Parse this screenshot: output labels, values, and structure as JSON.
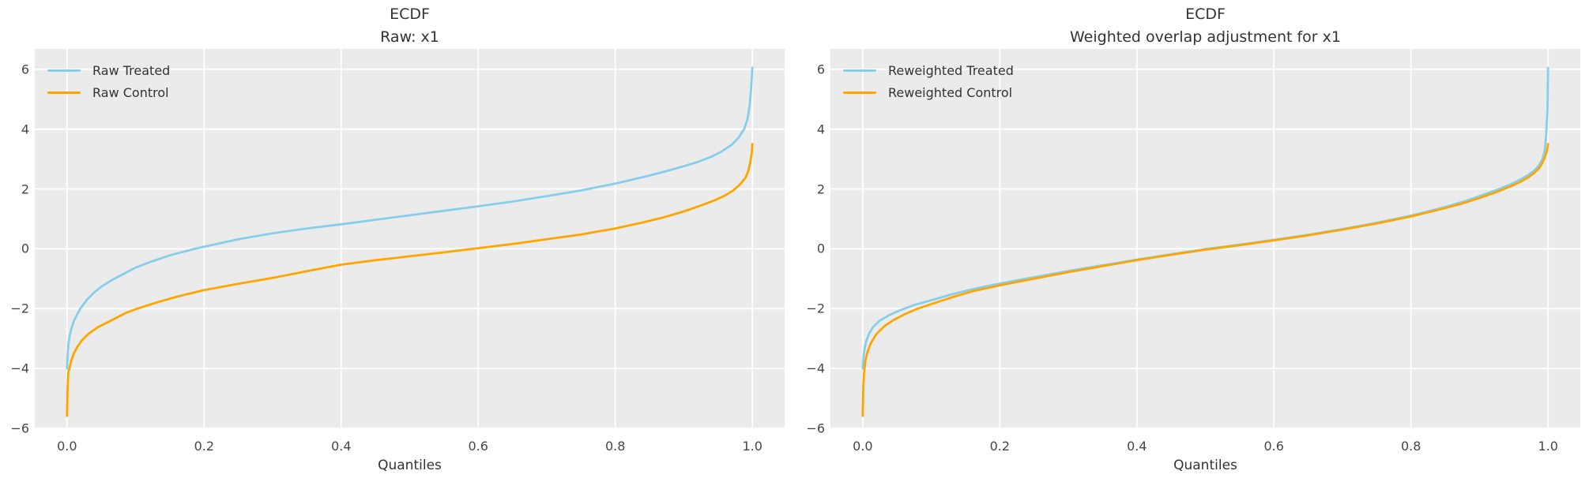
{
  "figure": {
    "background": "#ffffff",
    "axes_background": "#ebebeb",
    "grid_color": "#ffffff",
    "treated_color": "#87CEEB",
    "control_color": "#FFA500"
  },
  "chart_data": [
    {
      "type": "line",
      "title_lines": [
        "ECDF",
        "Raw: x1"
      ],
      "xlabel": "Quantiles",
      "grid": true,
      "legend_position": "upper left",
      "xlim": [
        -0.047,
        1.047
      ],
      "ylim": [
        -6.0,
        6.68
      ],
      "xticks": [
        0.0,
        0.2,
        0.4,
        0.6,
        0.8,
        1.0
      ],
      "xtick_labels": [
        "0.0",
        "0.2",
        "0.4",
        "0.6",
        "0.8",
        "1.0"
      ],
      "yticks": [
        6,
        4,
        2,
        0,
        -2,
        -4,
        -6
      ],
      "ytick_labels": [
        "6",
        "4",
        "2",
        "0",
        "−2",
        "−4",
        "−6"
      ],
      "series": [
        {
          "name": "Raw Treated",
          "color": "#87CEEB",
          "points": [
            [
              0.0,
              -4.0
            ],
            [
              0.001,
              -3.55
            ],
            [
              0.002,
              -3.2
            ],
            [
              0.004,
              -2.9
            ],
            [
              0.006,
              -2.7
            ],
            [
              0.01,
              -2.42
            ],
            [
              0.015,
              -2.18
            ],
            [
              0.02,
              -1.98
            ],
            [
              0.03,
              -1.68
            ],
            [
              0.04,
              -1.45
            ],
            [
              0.05,
              -1.27
            ],
            [
              0.065,
              -1.05
            ],
            [
              0.08,
              -0.87
            ],
            [
              0.1,
              -0.63
            ],
            [
              0.12,
              -0.45
            ],
            [
              0.15,
              -0.22
            ],
            [
              0.18,
              -0.04
            ],
            [
              0.2,
              0.07
            ],
            [
              0.25,
              0.32
            ],
            [
              0.3,
              0.52
            ],
            [
              0.35,
              0.68
            ],
            [
              0.4,
              0.82
            ],
            [
              0.45,
              0.97
            ],
            [
              0.5,
              1.12
            ],
            [
              0.55,
              1.27
            ],
            [
              0.6,
              1.42
            ],
            [
              0.65,
              1.58
            ],
            [
              0.7,
              1.76
            ],
            [
              0.75,
              1.95
            ],
            [
              0.8,
              2.18
            ],
            [
              0.85,
              2.45
            ],
            [
              0.88,
              2.63
            ],
            [
              0.9,
              2.76
            ],
            [
              0.92,
              2.9
            ],
            [
              0.94,
              3.08
            ],
            [
              0.955,
              3.25
            ],
            [
              0.97,
              3.48
            ],
            [
              0.98,
              3.72
            ],
            [
              0.988,
              4.0
            ],
            [
              0.993,
              4.35
            ],
            [
              0.996,
              4.8
            ],
            [
              0.998,
              5.3
            ],
            [
              1.0,
              6.05
            ]
          ]
        },
        {
          "name": "Raw Control",
          "color": "#FFA500",
          "points": [
            [
              0.0,
              -5.58
            ],
            [
              0.001,
              -4.6
            ],
            [
              0.002,
              -4.1
            ],
            [
              0.003,
              -4.05
            ],
            [
              0.006,
              -3.75
            ],
            [
              0.01,
              -3.5
            ],
            [
              0.015,
              -3.28
            ],
            [
              0.022,
              -3.05
            ],
            [
              0.032,
              -2.83
            ],
            [
              0.045,
              -2.62
            ],
            [
              0.06,
              -2.45
            ],
            [
              0.07,
              -2.33
            ],
            [
              0.085,
              -2.15
            ],
            [
              0.1,
              -2.02
            ],
            [
              0.13,
              -1.8
            ],
            [
              0.16,
              -1.6
            ],
            [
              0.2,
              -1.38
            ],
            [
              0.25,
              -1.17
            ],
            [
              0.3,
              -0.97
            ],
            [
              0.35,
              -0.75
            ],
            [
              0.4,
              -0.53
            ],
            [
              0.45,
              -0.38
            ],
            [
              0.5,
              -0.25
            ],
            [
              0.55,
              -0.12
            ],
            [
              0.6,
              0.02
            ],
            [
              0.65,
              0.16
            ],
            [
              0.7,
              0.32
            ],
            [
              0.75,
              0.48
            ],
            [
              0.8,
              0.68
            ],
            [
              0.84,
              0.88
            ],
            [
              0.87,
              1.05
            ],
            [
              0.9,
              1.25
            ],
            [
              0.925,
              1.45
            ],
            [
              0.945,
              1.62
            ],
            [
              0.96,
              1.78
            ],
            [
              0.972,
              1.95
            ],
            [
              0.982,
              2.15
            ],
            [
              0.99,
              2.38
            ],
            [
              0.994,
              2.6
            ],
            [
              0.997,
              2.9
            ],
            [
              0.999,
              3.2
            ],
            [
              1.0,
              3.5
            ]
          ]
        }
      ]
    },
    {
      "type": "line",
      "title_lines": [
        "ECDF",
        "Weighted overlap adjustment for x1"
      ],
      "xlabel": "Quantiles",
      "grid": true,
      "legend_position": "upper left",
      "xlim": [
        -0.047,
        1.047
      ],
      "ylim": [
        -6.0,
        6.68
      ],
      "xticks": [
        0.0,
        0.2,
        0.4,
        0.6,
        0.8,
        1.0
      ],
      "xtick_labels": [
        "0.0",
        "0.2",
        "0.4",
        "0.6",
        "0.8",
        "1.0"
      ],
      "yticks": [
        6,
        4,
        2,
        0,
        -2,
        -4,
        -6
      ],
      "ytick_labels": [
        "6",
        "4",
        "2",
        "0",
        "−2",
        "−4",
        "−6"
      ],
      "series": [
        {
          "name": "Reweighted Treated",
          "color": "#87CEEB",
          "points": [
            [
              0.0,
              -4.0
            ],
            [
              0.002,
              -3.45
            ],
            [
              0.005,
              -3.1
            ],
            [
              0.009,
              -2.85
            ],
            [
              0.015,
              -2.62
            ],
            [
              0.025,
              -2.4
            ],
            [
              0.04,
              -2.2
            ],
            [
              0.055,
              -2.05
            ],
            [
              0.075,
              -1.88
            ],
            [
              0.1,
              -1.72
            ],
            [
              0.13,
              -1.52
            ],
            [
              0.16,
              -1.35
            ],
            [
              0.2,
              -1.16
            ],
            [
              0.25,
              -0.95
            ],
            [
              0.3,
              -0.74
            ],
            [
              0.35,
              -0.55
            ],
            [
              0.4,
              -0.36
            ],
            [
              0.45,
              -0.18
            ],
            [
              0.5,
              -0.01
            ],
            [
              0.55,
              0.14
            ],
            [
              0.6,
              0.3
            ],
            [
              0.65,
              0.47
            ],
            [
              0.7,
              0.66
            ],
            [
              0.75,
              0.87
            ],
            [
              0.8,
              1.11
            ],
            [
              0.85,
              1.4
            ],
            [
              0.88,
              1.6
            ],
            [
              0.9,
              1.76
            ],
            [
              0.925,
              1.97
            ],
            [
              0.945,
              2.15
            ],
            [
              0.96,
              2.32
            ],
            [
              0.972,
              2.48
            ],
            [
              0.98,
              2.62
            ],
            [
              0.987,
              2.8
            ],
            [
              0.992,
              3.0
            ],
            [
              0.995,
              3.28
            ],
            [
              0.997,
              3.75
            ],
            [
              0.999,
              4.6
            ],
            [
              1.0,
              6.05
            ]
          ]
        },
        {
          "name": "Reweighted Control",
          "color": "#FFA500",
          "points": [
            [
              0.0,
              -5.58
            ],
            [
              0.001,
              -4.6
            ],
            [
              0.002,
              -4.15
            ],
            [
              0.004,
              -3.75
            ],
            [
              0.007,
              -3.45
            ],
            [
              0.012,
              -3.15
            ],
            [
              0.02,
              -2.85
            ],
            [
              0.032,
              -2.58
            ],
            [
              0.045,
              -2.38
            ],
            [
              0.06,
              -2.2
            ],
            [
              0.08,
              -2.0
            ],
            [
              0.1,
              -1.85
            ],
            [
              0.13,
              -1.62
            ],
            [
              0.16,
              -1.42
            ],
            [
              0.2,
              -1.22
            ],
            [
              0.25,
              -1.0
            ],
            [
              0.3,
              -0.78
            ],
            [
              0.35,
              -0.58
            ],
            [
              0.4,
              -0.38
            ],
            [
              0.45,
              -0.2
            ],
            [
              0.5,
              -0.03
            ],
            [
              0.55,
              0.12
            ],
            [
              0.6,
              0.28
            ],
            [
              0.65,
              0.45
            ],
            [
              0.7,
              0.64
            ],
            [
              0.75,
              0.85
            ],
            [
              0.8,
              1.08
            ],
            [
              0.85,
              1.36
            ],
            [
              0.88,
              1.55
            ],
            [
              0.9,
              1.7
            ],
            [
              0.925,
              1.9
            ],
            [
              0.945,
              2.08
            ],
            [
              0.96,
              2.24
            ],
            [
              0.972,
              2.4
            ],
            [
              0.98,
              2.54
            ],
            [
              0.987,
              2.7
            ],
            [
              0.992,
              2.88
            ],
            [
              0.995,
              3.05
            ],
            [
              0.998,
              3.25
            ],
            [
              1.0,
              3.5
            ]
          ]
        }
      ]
    }
  ]
}
